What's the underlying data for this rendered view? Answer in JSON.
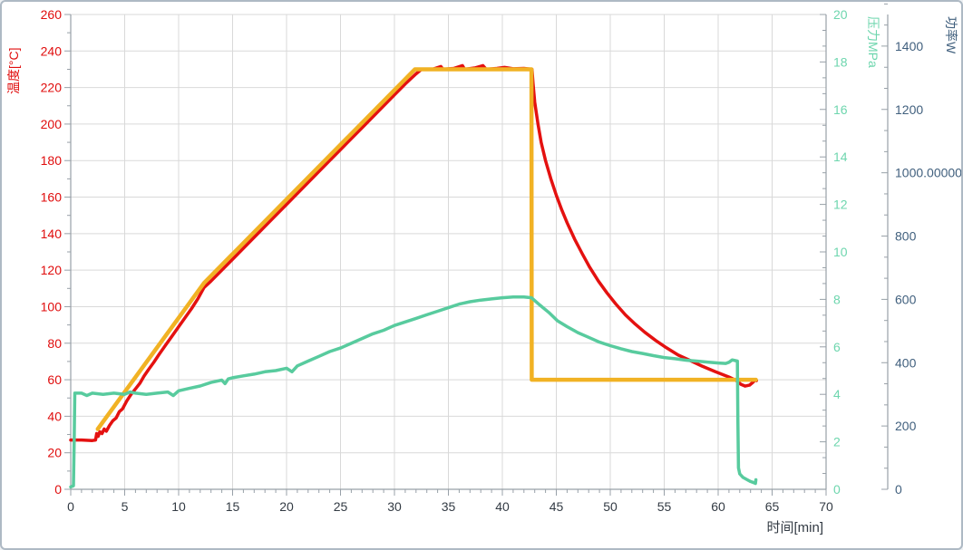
{
  "chart_data": {
    "type": "line",
    "title": "",
    "grid": true,
    "legend": "none",
    "x_axis": {
      "label": "时间[min]",
      "min": 0,
      "max": 70,
      "tick_step": 5,
      "minor_divisions": 5,
      "label_color": "#333b44",
      "tick_color": "#98a0a8"
    },
    "axes": {
      "temperature": {
        "label": "温度[°C]",
        "side": "left",
        "min": 0,
        "max": 260,
        "tick_step": 20,
        "minor_divisions": 2,
        "color": "#e00d0d"
      },
      "pressure": {
        "label": "压力MPa",
        "side": "right-inner",
        "min": 0,
        "max": 20,
        "tick_step": 2,
        "minor_divisions": 3,
        "color": "#6ed6ae"
      },
      "power": {
        "label": "功率W",
        "side": "right-outer",
        "min": 0,
        "max": 1500,
        "tick_step": 200,
        "max_label": 1400,
        "minor_divisions": 3,
        "color": "#41607e"
      }
    },
    "colors": {
      "grid": "#d9d9d9",
      "axis_line": "#98a0a8",
      "window_border": "#aeb9c4",
      "temperature_curve": "#e41110",
      "setpoint_curve": "#f1b224",
      "pressure_curve": "#58cb9e"
    },
    "series": [
      {
        "name": "temperature-measured",
        "axis": "temperature",
        "color": "#e41110",
        "width": 3.5,
        "points": [
          [
            0,
            27
          ],
          [
            1,
            27
          ],
          [
            2,
            26.7
          ],
          [
            2.3,
            27
          ],
          [
            2.4,
            30.5
          ],
          [
            2.55,
            29
          ],
          [
            2.7,
            31.5
          ],
          [
            2.9,
            30.5
          ],
          [
            3.1,
            33
          ],
          [
            3.3,
            31.8
          ],
          [
            3.6,
            35
          ],
          [
            3.9,
            37.5
          ],
          [
            4.2,
            39
          ],
          [
            4.5,
            42.5
          ],
          [
            4.8,
            44
          ],
          [
            5.2,
            48.5
          ],
          [
            5.6,
            52
          ],
          [
            6,
            55
          ],
          [
            6.4,
            58
          ],
          [
            6.8,
            62
          ],
          [
            7.2,
            65.5
          ],
          [
            7.7,
            69.5
          ],
          [
            8.2,
            74
          ],
          [
            8.8,
            79
          ],
          [
            9.4,
            84
          ],
          [
            10,
            89
          ],
          [
            10.6,
            94
          ],
          [
            11.2,
            99
          ],
          [
            11.8,
            104.5
          ],
          [
            12.35,
            110.5
          ],
          [
            13,
            114
          ],
          [
            14,
            120
          ],
          [
            15,
            126
          ],
          [
            16,
            132
          ],
          [
            17,
            138
          ],
          [
            18,
            144
          ],
          [
            19,
            150
          ],
          [
            20,
            156
          ],
          [
            21,
            162
          ],
          [
            22,
            168
          ],
          [
            23,
            174
          ],
          [
            24,
            180
          ],
          [
            25,
            186
          ],
          [
            26,
            192
          ],
          [
            27,
            198
          ],
          [
            28,
            204
          ],
          [
            29,
            210
          ],
          [
            30,
            216
          ],
          [
            31,
            222
          ],
          [
            32,
            227.5
          ],
          [
            32.5,
            230
          ],
          [
            33.5,
            230
          ],
          [
            34.3,
            231.5
          ],
          [
            34.5,
            230
          ],
          [
            35.5,
            230.5
          ],
          [
            36.3,
            232
          ],
          [
            36.5,
            230
          ],
          [
            37.5,
            230.8
          ],
          [
            38.2,
            232
          ],
          [
            38.5,
            230
          ],
          [
            39.5,
            230.5
          ],
          [
            40.2,
            231
          ],
          [
            41,
            230.3
          ],
          [
            42,
            230.5
          ],
          [
            42.75,
            230
          ],
          [
            42.85,
            222
          ],
          [
            43,
            212
          ],
          [
            43.3,
            200
          ],
          [
            43.6,
            190
          ],
          [
            44,
            180
          ],
          [
            44.5,
            170
          ],
          [
            45,
            161
          ],
          [
            45.5,
            153
          ],
          [
            46,
            146
          ],
          [
            46.7,
            137
          ],
          [
            47.4,
            129
          ],
          [
            48.1,
            121.5
          ],
          [
            48.9,
            114
          ],
          [
            49.7,
            107.5
          ],
          [
            50.5,
            101.5
          ],
          [
            51.4,
            95.5
          ],
          [
            52.3,
            90.5
          ],
          [
            53.2,
            86
          ],
          [
            54.2,
            81.5
          ],
          [
            55.2,
            77.5
          ],
          [
            56.3,
            73.5
          ],
          [
            57.4,
            70.5
          ],
          [
            58.5,
            67.5
          ],
          [
            59.7,
            64.5
          ],
          [
            61,
            61.5
          ],
          [
            61.7,
            59.5
          ],
          [
            62.1,
            57.5
          ],
          [
            62.5,
            56.5
          ],
          [
            62.9,
            57
          ],
          [
            63.2,
            58.5
          ],
          [
            63.45,
            60
          ],
          [
            63.55,
            59.5
          ]
        ]
      },
      {
        "name": "temperature-setpoint",
        "axis": "temperature",
        "color": "#f1b224",
        "width": 4.5,
        "points": [
          [
            2.5,
            33
          ],
          [
            12.35,
            113
          ],
          [
            31.9,
            230
          ],
          [
            42.7,
            230
          ],
          [
            42.72,
            60
          ],
          [
            63.5,
            60
          ]
        ]
      },
      {
        "name": "pressure",
        "axis": "pressure",
        "color": "#58cb9e",
        "width": 3.5,
        "points": [
          [
            0,
            0.1
          ],
          [
            0.25,
            0.15
          ],
          [
            0.32,
            2
          ],
          [
            0.38,
            4.05
          ],
          [
            1,
            4.05
          ],
          [
            1.5,
            3.95
          ],
          [
            2,
            4.05
          ],
          [
            3,
            4
          ],
          [
            4,
            4.05
          ],
          [
            5,
            4
          ],
          [
            5.5,
            4.1
          ],
          [
            6,
            4.05
          ],
          [
            7,
            4
          ],
          [
            8,
            4.05
          ],
          [
            9,
            4.1
          ],
          [
            9.5,
            3.95
          ],
          [
            10,
            4.15
          ],
          [
            11,
            4.25
          ],
          [
            12,
            4.35
          ],
          [
            13,
            4.5
          ],
          [
            14,
            4.6
          ],
          [
            14.3,
            4.45
          ],
          [
            14.6,
            4.65
          ],
          [
            15,
            4.7
          ],
          [
            16,
            4.78
          ],
          [
            17,
            4.85
          ],
          [
            18,
            4.95
          ],
          [
            19,
            5
          ],
          [
            20,
            5.1
          ],
          [
            20.5,
            4.95
          ],
          [
            21,
            5.2
          ],
          [
            22,
            5.4
          ],
          [
            23,
            5.6
          ],
          [
            24,
            5.8
          ],
          [
            25,
            5.95
          ],
          [
            26,
            6.15
          ],
          [
            27,
            6.35
          ],
          [
            28,
            6.55
          ],
          [
            29,
            6.7
          ],
          [
            30,
            6.9
          ],
          [
            31,
            7.05
          ],
          [
            32,
            7.2
          ],
          [
            33,
            7.35
          ],
          [
            34,
            7.5
          ],
          [
            35,
            7.65
          ],
          [
            36,
            7.8
          ],
          [
            37,
            7.9
          ],
          [
            38,
            7.97
          ],
          [
            39,
            8.02
          ],
          [
            40,
            8.07
          ],
          [
            41,
            8.1
          ],
          [
            42,
            8.1
          ],
          [
            42.7,
            8.07
          ],
          [
            43.5,
            7.75
          ],
          [
            44.3,
            7.45
          ],
          [
            45.1,
            7.1
          ],
          [
            46,
            6.85
          ],
          [
            47,
            6.6
          ],
          [
            48,
            6.4
          ],
          [
            49,
            6.2
          ],
          [
            50,
            6.05
          ],
          [
            51,
            5.92
          ],
          [
            52,
            5.8
          ],
          [
            53,
            5.72
          ],
          [
            54,
            5.63
          ],
          [
            55,
            5.55
          ],
          [
            56,
            5.5
          ],
          [
            57,
            5.44
          ],
          [
            58,
            5.4
          ],
          [
            59,
            5.36
          ],
          [
            60,
            5.32
          ],
          [
            60.7,
            5.3
          ],
          [
            61,
            5.35
          ],
          [
            61.3,
            5.45
          ],
          [
            61.6,
            5.42
          ],
          [
            61.78,
            5.4
          ],
          [
            61.82,
            3
          ],
          [
            61.88,
            0.9
          ],
          [
            62,
            0.65
          ],
          [
            62.3,
            0.5
          ],
          [
            62.7,
            0.4
          ],
          [
            63,
            0.33
          ],
          [
            63.3,
            0.28
          ],
          [
            63.45,
            0.25
          ],
          [
            63.5,
            0.4
          ]
        ]
      }
    ]
  }
}
